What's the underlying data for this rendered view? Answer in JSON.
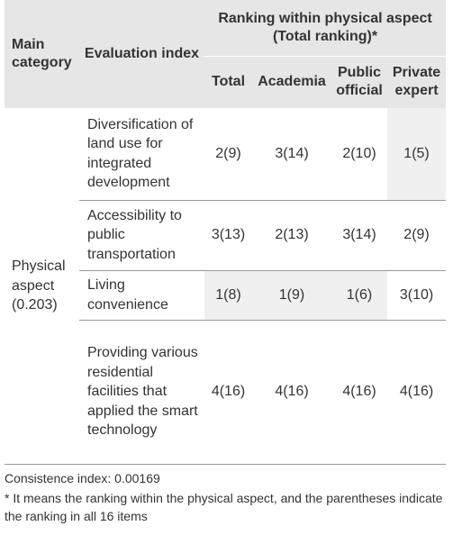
{
  "table": {
    "header": {
      "main_category": "Main category",
      "evaluation_index": "Evaluation index",
      "ranking": "Ranking within physical aspect (Total ranking)*",
      "columns": [
        "Total",
        "Academia",
        "Public official",
        "Private expert"
      ]
    },
    "main_category": "Physical aspect (0.203)",
    "rows": [
      {
        "index": "Diversification of land use for integrated development",
        "values": [
          "2(9)",
          "3(14)",
          "2(10)",
          "1(5)"
        ],
        "shaded": [
          false,
          false,
          false,
          true
        ]
      },
      {
        "index": "Accessibility to public transportation",
        "values": [
          "3(13)",
          "2(13)",
          "3(14)",
          "2(9)"
        ],
        "shaded": [
          false,
          false,
          false,
          false
        ]
      },
      {
        "index": "Living convenience",
        "values": [
          "1(8)",
          "1(9)",
          "1(6)",
          "3(10)"
        ],
        "shaded": [
          true,
          true,
          true,
          false
        ]
      },
      {
        "index": "Providing various residential facilities that applied the smart technology",
        "values": [
          "4(16)",
          "4(16)",
          "4(16)",
          "4(16)"
        ],
        "shaded": [
          false,
          false,
          false,
          false
        ]
      }
    ]
  },
  "footnotes": [
    "Consistence index: 0.00169",
    "* It means the ranking within the physical aspect, and the parentheses indicate the ranking in all 16 items"
  ]
}
